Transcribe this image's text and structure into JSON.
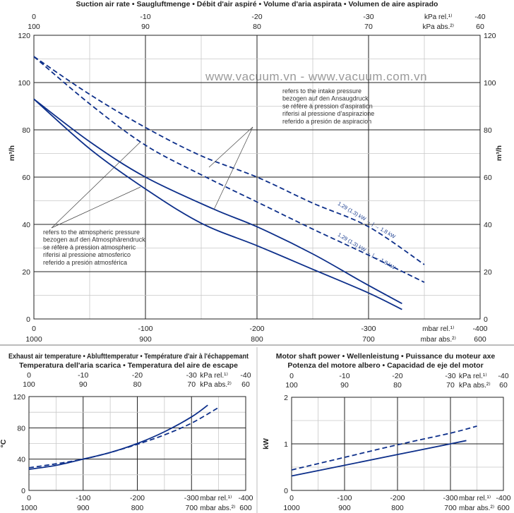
{
  "watermark": "www.vacuum.vn - www.vacuum.com.vn",
  "colors": {
    "curve": "#0d2f8a",
    "grid_major": "#222222",
    "grid_minor": "#c8c8c8"
  },
  "units": {
    "kpa_rel": "kPa rel.¹⁾",
    "kpa_abs": "kPa abs.²⁾",
    "mbar_rel": "mbar rel.¹⁾",
    "mbar_abs": "mbar abs.²⁾"
  },
  "chart_data": [
    {
      "type": "line",
      "title": "Suction air rate  •  Saugluftmenge  •  Débit d'air aspiré  •  Volume d'aria aspirata  •  Volumen de aire aspirado",
      "ylabel": "m³/h",
      "xlim": [
        0,
        -400
      ],
      "ylim": [
        0,
        120
      ],
      "grid": true,
      "x_ticks_mbar_rel": [
        "0",
        "-100",
        "-200",
        "-300",
        "-400"
      ],
      "x_ticks_mbar_abs": [
        "1000",
        "900",
        "800",
        "700",
        "600"
      ],
      "x_ticks_kpa_rel": [
        "0",
        "-10",
        "-20",
        "-30",
        "-40"
      ],
      "x_ticks_kpa_abs": [
        "100",
        "90",
        "80",
        "70",
        "60"
      ],
      "y_ticks": [
        "0",
        "20",
        "40",
        "60",
        "80",
        "100",
        "120"
      ],
      "series": [
        {
          "style": "solid",
          "x": [
            0,
            -50,
            -100,
            -150,
            -200,
            -250,
            -300,
            -330
          ],
          "y": [
            93,
            72,
            55,
            40.5,
            31,
            21,
            11,
            4
          ]
        },
        {
          "style": "solid",
          "x": [
            0,
            -50,
            -100,
            -161,
            -200,
            -250,
            -295,
            -330
          ],
          "y": [
            93,
            75,
            60,
            46.5,
            39,
            27.5,
            15.5,
            6.5
          ]
        },
        {
          "style": "dashed",
          "x": [
            0,
            -50,
            -100,
            -150,
            -200,
            -250,
            -300,
            -350
          ],
          "y": [
            111,
            95,
            81,
            69,
            60,
            49,
            39,
            23
          ]
        },
        {
          "style": "dashed",
          "x": [
            0,
            -50,
            -100,
            -150,
            -200,
            -250,
            -300,
            -350
          ],
          "y": [
            111,
            91,
            73.5,
            61,
            49.5,
            38,
            27,
            15.5
          ]
        }
      ],
      "annotations": {
        "intake": [
          "refers to the intake pressure",
          "bezogen auf den Ansaugdruck",
          "se réfère à pression d'aspiration",
          "riferisi al pressione d'aspirazione",
          "referido a presión de aspiracion"
        ],
        "atmospheric": [
          "refers to the atmospheric pressure",
          "bezogen auf den Atmosphärendruck",
          "se réfère à pression atmospheric",
          "riferisi al pressione atmosferico",
          "referido a presión atmosférica"
        ],
        "power_upper": "1.29 (1.3) kW → | → 1.8 kW",
        "power_lower": "1.29 (1.3) kW → | → 1.8 kW"
      }
    },
    {
      "type": "line",
      "title_line1": "Exhaust air temperature  •  Ablufttemperatur  •  Température d'air à l'échappemant",
      "title_line2": "Temperatura dell'aria scarica  •  Temperatura del aire de escape",
      "ylabel": "°C",
      "xlim": [
        0,
        -400
      ],
      "ylim": [
        0,
        120
      ],
      "grid": true,
      "y_ticks": [
        "0",
        "40",
        "80",
        "120"
      ],
      "series": [
        {
          "style": "solid",
          "x": [
            0,
            -50,
            -100,
            -150,
            -200,
            -250,
            -300,
            -330
          ],
          "y": [
            27,
            32,
            40,
            48.5,
            60,
            75,
            94,
            109
          ]
        },
        {
          "style": "dashed",
          "x": [
            0,
            -50,
            -100,
            -150,
            -200,
            -250,
            -300,
            -350
          ],
          "y": [
            29,
            34,
            40,
            48.5,
            59,
            71,
            86,
            106
          ]
        }
      ]
    },
    {
      "type": "line",
      "title_line1": "Motor shaft power  •  Wellenleistung  •  Puissance du moteur axe",
      "title_line2": "Potenza del motore albero  •  Capacidad de eje del motor",
      "ylabel": "kW",
      "xlim": [
        0,
        -400
      ],
      "ylim": [
        0,
        2
      ],
      "grid": true,
      "y_ticks": [
        "0",
        "1",
        "2"
      ],
      "series": [
        {
          "style": "solid",
          "x": [
            0,
            -100,
            -200,
            -300,
            -330
          ],
          "y": [
            0.31,
            0.54,
            0.77,
            1.0,
            1.07
          ]
        },
        {
          "style": "dashed",
          "x": [
            0,
            -100,
            -200,
            -300,
            -350
          ],
          "y": [
            0.44,
            0.71,
            0.98,
            1.23,
            1.38
          ]
        }
      ]
    }
  ]
}
